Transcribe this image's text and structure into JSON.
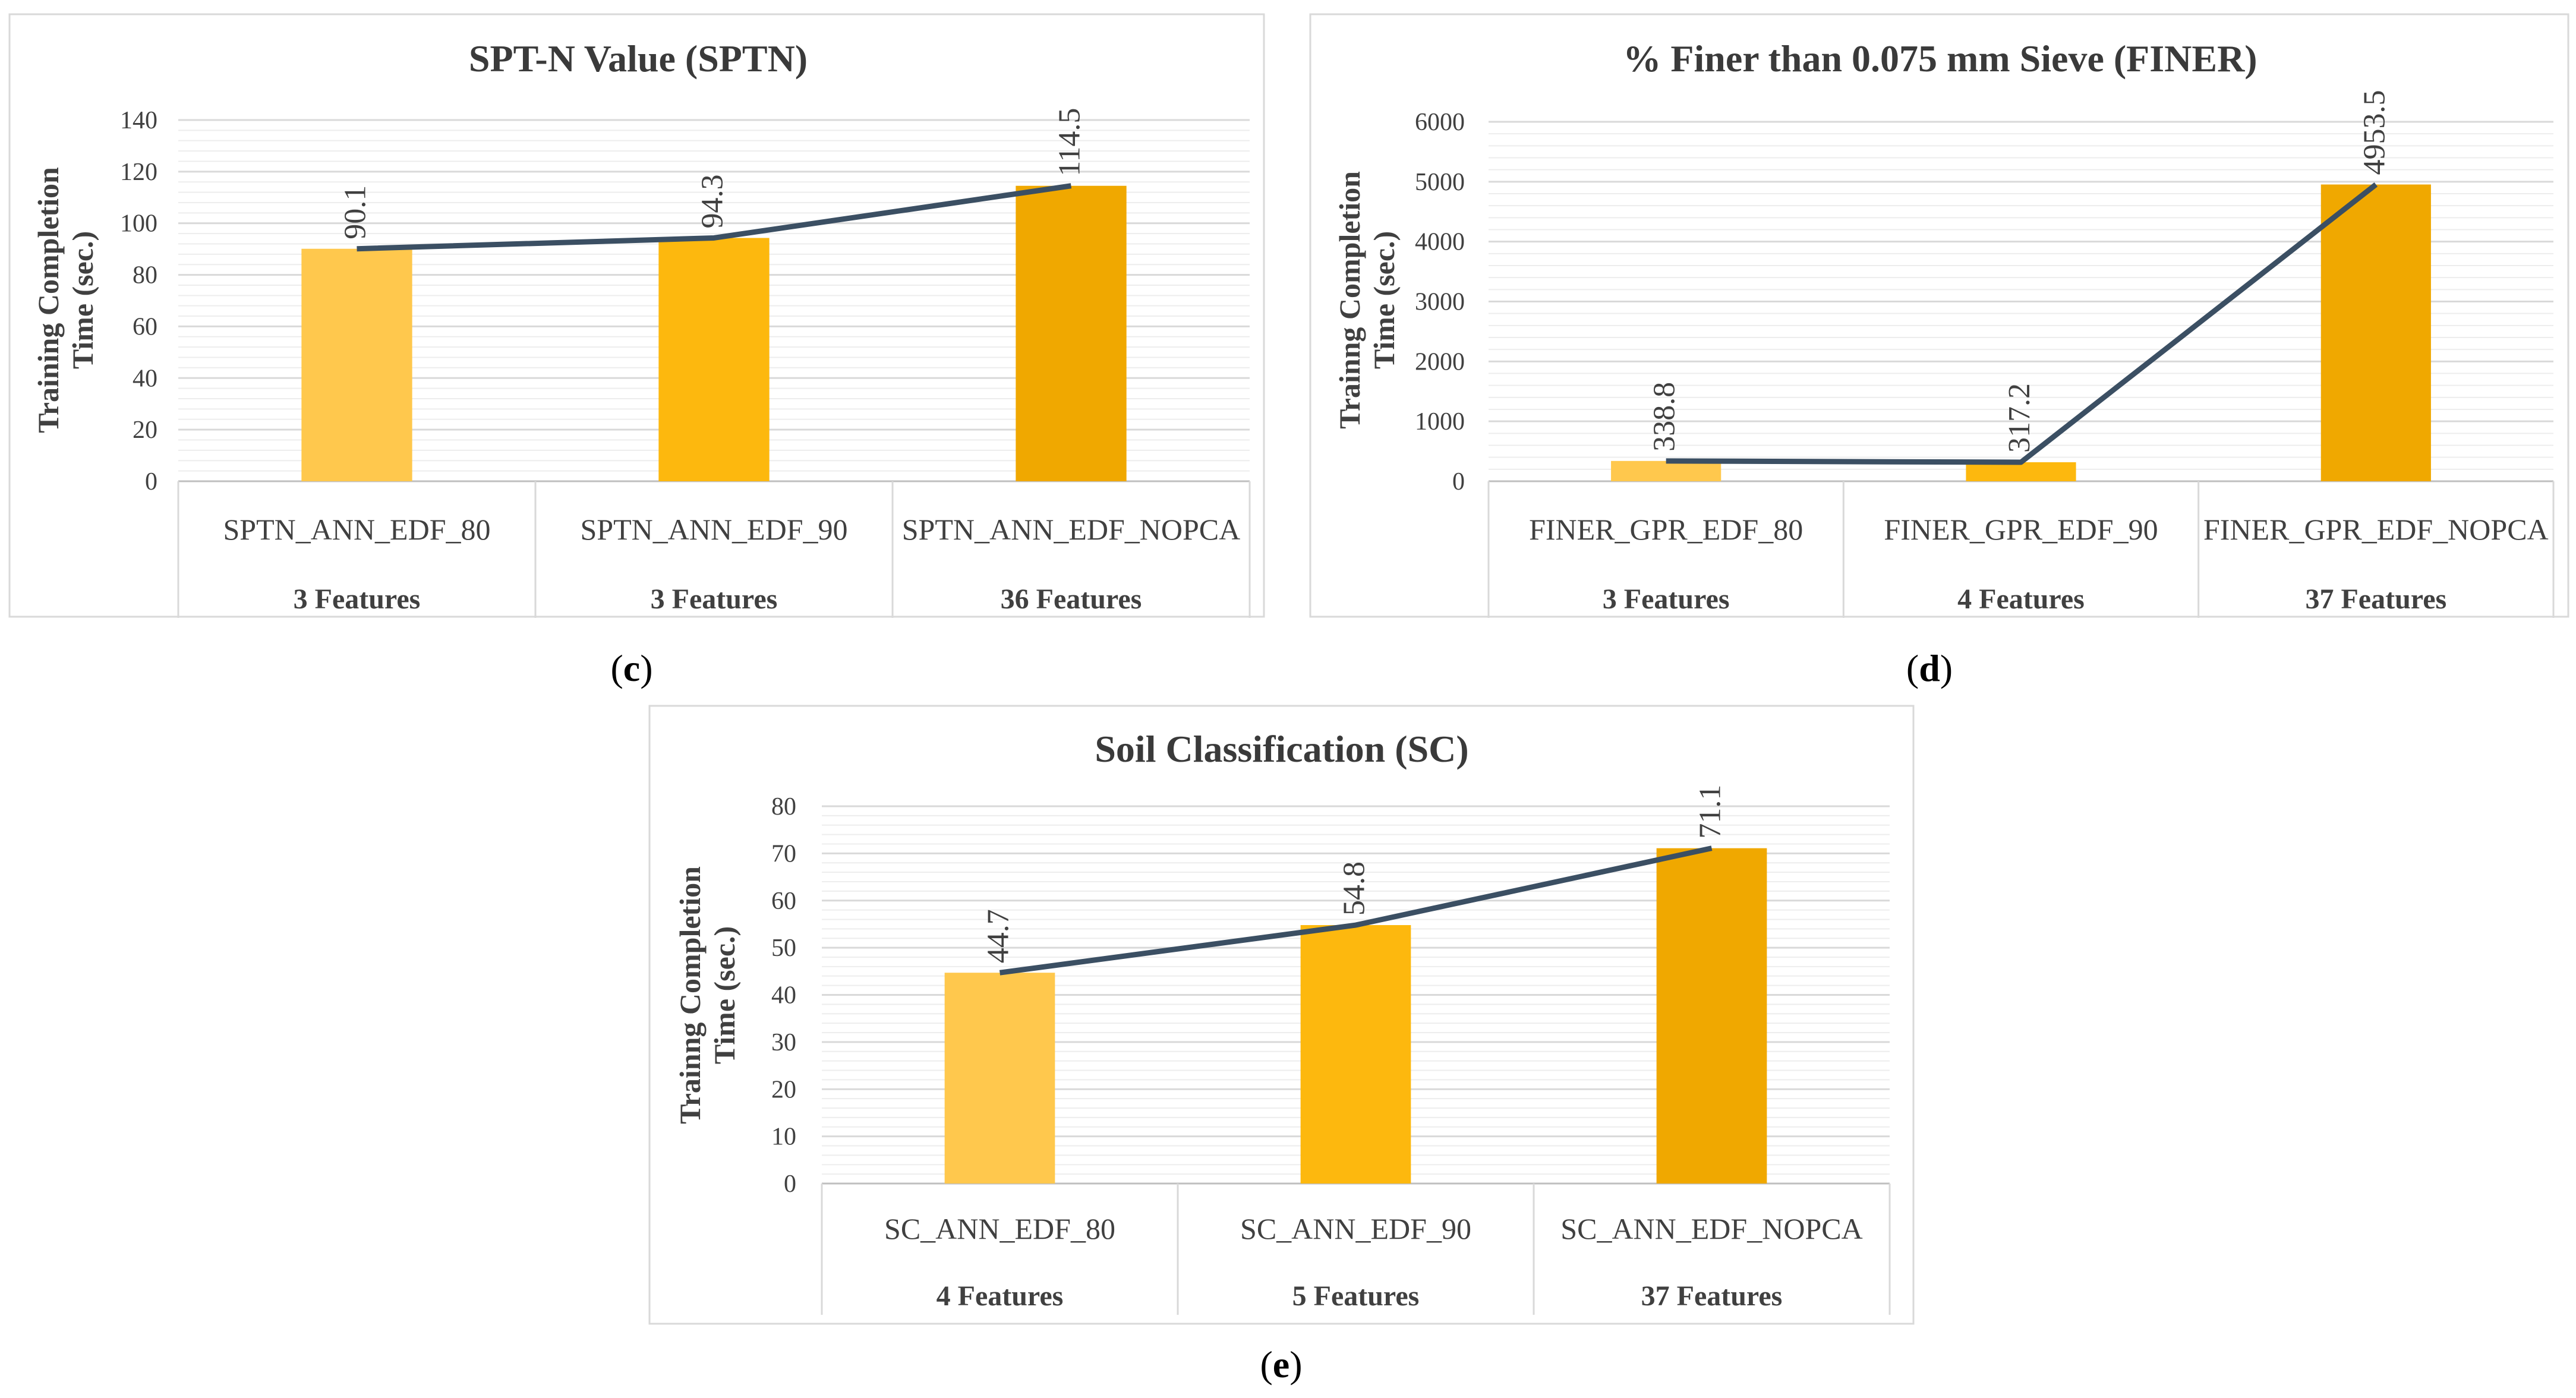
{
  "colors": {
    "bar_light": "#FFC84D",
    "bar_mid": "#FDB80E",
    "bar_dark": "#F0A800",
    "line": "#3B4F63",
    "grid": "#D9D9D9",
    "frame": "#D9D9D9",
    "text": "#404040",
    "title": "#3A3A3A"
  },
  "chart_data": [
    {
      "panel": "c",
      "type": "bar",
      "title": "SPT-N Value (SPTN)",
      "ylabel_lines": [
        "Training Completion",
        "Time (sec.)"
      ],
      "xlabel": "",
      "ylim": [
        0,
        140
      ],
      "yticks": [
        0,
        20,
        40,
        60,
        80,
        100,
        120,
        140
      ],
      "categories": [
        "SPTN_ANN_EDF_80",
        "SPTN_ANN_EDF_90",
        "SPTN_ANN_EDF_NOPCA"
      ],
      "subcategories": [
        "3 Features",
        "3 Features",
        "36 Features"
      ],
      "values": [
        90.1,
        94.3,
        114.5
      ],
      "data_labels": [
        "90.1",
        "94.3",
        "114.5"
      ],
      "overlay_line": true,
      "caption_open": "(",
      "caption_letter": "c",
      "caption_close": ")"
    },
    {
      "panel": "d",
      "type": "bar",
      "title": "% Finer than 0.075 mm Sieve (FINER)",
      "ylabel_lines": [
        "Trainng Completion",
        "Time (sec.)"
      ],
      "xlabel": "",
      "ylim": [
        0,
        6000
      ],
      "yticks": [
        0,
        1000,
        2000,
        3000,
        4000,
        5000,
        6000
      ],
      "categories": [
        "FINER_GPR_EDF_80",
        "FINER_GPR_EDF_90",
        "FINER_GPR_EDF_NOPCA"
      ],
      "subcategories": [
        "3 Features",
        "4 Features",
        "37 Features"
      ],
      "values": [
        338.8,
        317.2,
        4953.5
      ],
      "data_labels": [
        "338.8",
        "317.2",
        "4953.5"
      ],
      "overlay_line": true,
      "caption_open": "(",
      "caption_letter": "d",
      "caption_close": ")"
    },
    {
      "panel": "e",
      "type": "bar",
      "title": "Soil Classification (SC)",
      "ylabel_lines": [
        "Trainng Completion",
        "Time (sec.)"
      ],
      "xlabel": "",
      "ylim": [
        0,
        80
      ],
      "yticks": [
        0,
        10,
        20,
        30,
        40,
        50,
        60,
        70,
        80
      ],
      "categories": [
        "SC_ANN_EDF_80",
        "SC_ANN_EDF_90",
        "SC_ANN_EDF_NOPCA"
      ],
      "subcategories": [
        "4 Features",
        "5 Features",
        "37 Features"
      ],
      "values": [
        44.7,
        54.8,
        71.1
      ],
      "data_labels": [
        "44.7",
        "54.8",
        "71.1"
      ],
      "overlay_line": true,
      "caption_open": "(",
      "caption_letter": "e",
      "caption_close": ")"
    }
  ]
}
